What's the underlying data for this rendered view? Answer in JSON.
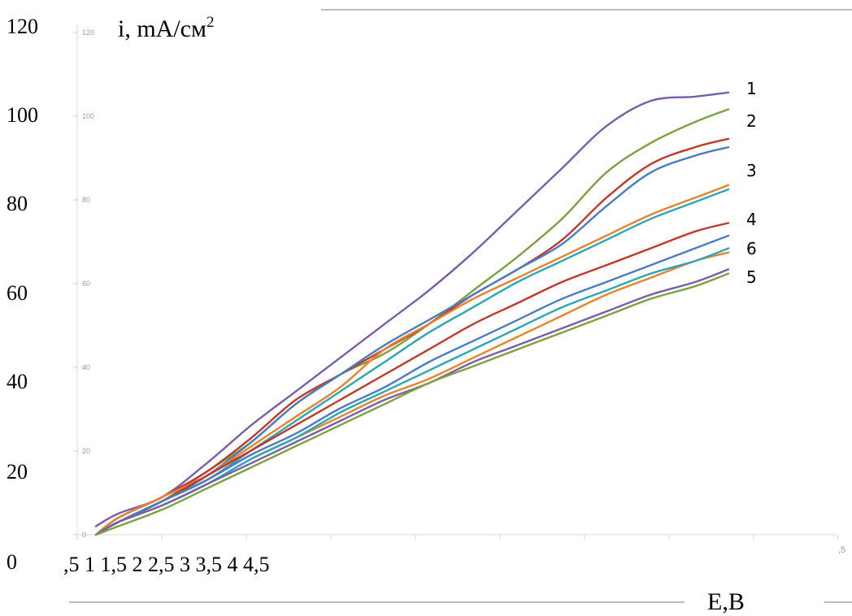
{
  "chart_data": {
    "type": "line",
    "ylabel_main": "i, mA/см",
    "ylabel_exp": "2",
    "xlabel": "E,B",
    "ylim": [
      0,
      120
    ],
    "y_ticks_outer": [
      "0",
      "20",
      "40",
      "60",
      "80",
      "100",
      "120"
    ],
    "y_ticks_inner": [
      "0",
      "20",
      "40",
      "60",
      "80",
      "100",
      "120"
    ],
    "x_tick_row": ",5 1 1,5 2 2,5 3 3,5 4 4,5",
    "x_tick_faint": ",5",
    "grid": false,
    "series": [
      {
        "name": "1",
        "color": "#7a5ea8",
        "x": [
          0.5,
          0.6,
          0.8,
          1.0,
          1.2,
          1.4,
          1.6,
          1.8,
          2.0,
          2.2,
          2.4,
          2.6,
          2.8,
          3.0,
          3.2,
          3.35
        ],
        "y": [
          2,
          5,
          9,
          17,
          26,
          34,
          42,
          50,
          58,
          67,
          77,
          87,
          97,
          103,
          104,
          105
        ]
      },
      {
        "name": "2",
        "color": "#7ba23f",
        "x": [
          0.5,
          0.6,
          0.8,
          1.0,
          1.2,
          1.4,
          1.6,
          1.8,
          2.0,
          2.2,
          2.4,
          2.6,
          2.8,
          3.0,
          3.2,
          3.35
        ],
        "y": [
          0,
          3,
          8,
          15,
          22,
          31,
          38,
          43,
          50,
          58,
          66,
          75,
          86,
          93,
          98,
          101
        ]
      },
      {
        "name": "3",
        "color": "#c0392b",
        "x": [
          0.5,
          0.6,
          0.8,
          1.0,
          1.2,
          1.4,
          1.6,
          1.8,
          2.0,
          2.2,
          2.4,
          2.6,
          2.8,
          3.0,
          3.2,
          3.35
        ],
        "y": [
          0,
          4,
          9,
          15,
          23,
          32,
          38,
          44,
          50,
          57,
          63,
          70,
          80,
          88,
          92,
          94
        ]
      },
      {
        "name": "",
        "color": "#4a7cc4",
        "x": [
          0.5,
          0.6,
          0.8,
          1.0,
          1.2,
          1.4,
          1.6,
          1.8,
          2.0,
          2.2,
          2.4,
          2.6,
          2.8,
          3.0,
          3.2,
          3.35
        ],
        "y": [
          0,
          3,
          8,
          14,
          22,
          31,
          38,
          45,
          51,
          57,
          63,
          69,
          78,
          86,
          90,
          92
        ]
      },
      {
        "name": "",
        "color": "#e8822a",
        "x": [
          0.5,
          0.6,
          0.8,
          1.0,
          1.2,
          1.4,
          1.6,
          1.8,
          2.0,
          2.2,
          2.4,
          2.6,
          2.8,
          3.0,
          3.2,
          3.35
        ],
        "y": [
          0,
          4,
          9,
          14,
          21,
          28,
          35,
          44,
          50,
          56,
          61,
          66,
          71,
          76,
          80,
          83
        ]
      },
      {
        "name": "",
        "color": "#2ba6b8",
        "x": [
          0.5,
          0.6,
          0.8,
          1.0,
          1.2,
          1.4,
          1.6,
          1.8,
          2.0,
          2.2,
          2.4,
          2.6,
          2.8,
          3.0,
          3.2,
          3.35
        ],
        "y": [
          0,
          3,
          8,
          13,
          20,
          27,
          34,
          41,
          48,
          54,
          60,
          65,
          70,
          75,
          79,
          82
        ]
      },
      {
        "name": "4",
        "color": "#c0392b",
        "x": [
          0.5,
          0.6,
          0.8,
          1.0,
          1.2,
          1.4,
          1.6,
          1.8,
          2.0,
          2.2,
          2.4,
          2.6,
          2.8,
          3.0,
          3.2,
          3.35
        ],
        "y": [
          0,
          3,
          8,
          14,
          20,
          26,
          32,
          38,
          44,
          50,
          55,
          60,
          64,
          68,
          72,
          74
        ]
      },
      {
        "name": "",
        "color": "#4a7cc4",
        "x": [
          0.5,
          0.6,
          0.8,
          1.0,
          1.2,
          1.4,
          1.6,
          1.8,
          2.0,
          2.2,
          2.4,
          2.6,
          2.8,
          3.0,
          3.2,
          3.35
        ],
        "y": [
          0,
          3,
          8,
          13,
          19,
          24,
          30,
          35,
          41,
          46,
          51,
          56,
          60,
          64,
          68,
          71
        ]
      },
      {
        "name": "6",
        "color": "#e8822a",
        "x": [
          0.5,
          0.6,
          0.8,
          1.0,
          1.2,
          1.4,
          1.6,
          1.8,
          2.0,
          2.2,
          2.4,
          2.6,
          2.8,
          3.0,
          3.2,
          3.35
        ],
        "y": [
          0,
          3,
          7,
          12,
          18,
          23,
          28,
          33,
          37,
          42,
          47,
          52,
          57,
          61,
          65,
          67
        ]
      },
      {
        "name": "",
        "color": "#2ba6b8",
        "x": [
          0.5,
          0.6,
          0.8,
          1.0,
          1.2,
          1.4,
          1.6,
          1.8,
          2.0,
          2.2,
          2.4,
          2.6,
          2.8,
          3.0,
          3.2,
          3.35
        ],
        "y": [
          0,
          3,
          7,
          12,
          18,
          23,
          29,
          34,
          39,
          44,
          49,
          54,
          58,
          62,
          65,
          68
        ]
      },
      {
        "name": "5",
        "color": "#7a5ea8",
        "x": [
          0.5,
          0.6,
          0.8,
          1.0,
          1.2,
          1.4,
          1.6,
          1.8,
          2.0,
          2.2,
          2.4,
          2.6,
          2.8,
          3.0,
          3.2,
          3.35
        ],
        "y": [
          0,
          3,
          7,
          12,
          17,
          22,
          27,
          32,
          36,
          41,
          45,
          49,
          53,
          57,
          60,
          63
        ]
      },
      {
        "name": "",
        "color": "#7ba23f",
        "x": [
          0.5,
          0.6,
          0.8,
          1.0,
          1.2,
          1.4,
          1.6,
          1.8,
          2.0,
          2.2,
          2.4,
          2.6,
          2.8,
          3.0,
          3.2,
          3.35
        ],
        "y": [
          0,
          2,
          6,
          11,
          16,
          21,
          26,
          31,
          36,
          40,
          44,
          48,
          52,
          56,
          59,
          62
        ]
      }
    ]
  }
}
